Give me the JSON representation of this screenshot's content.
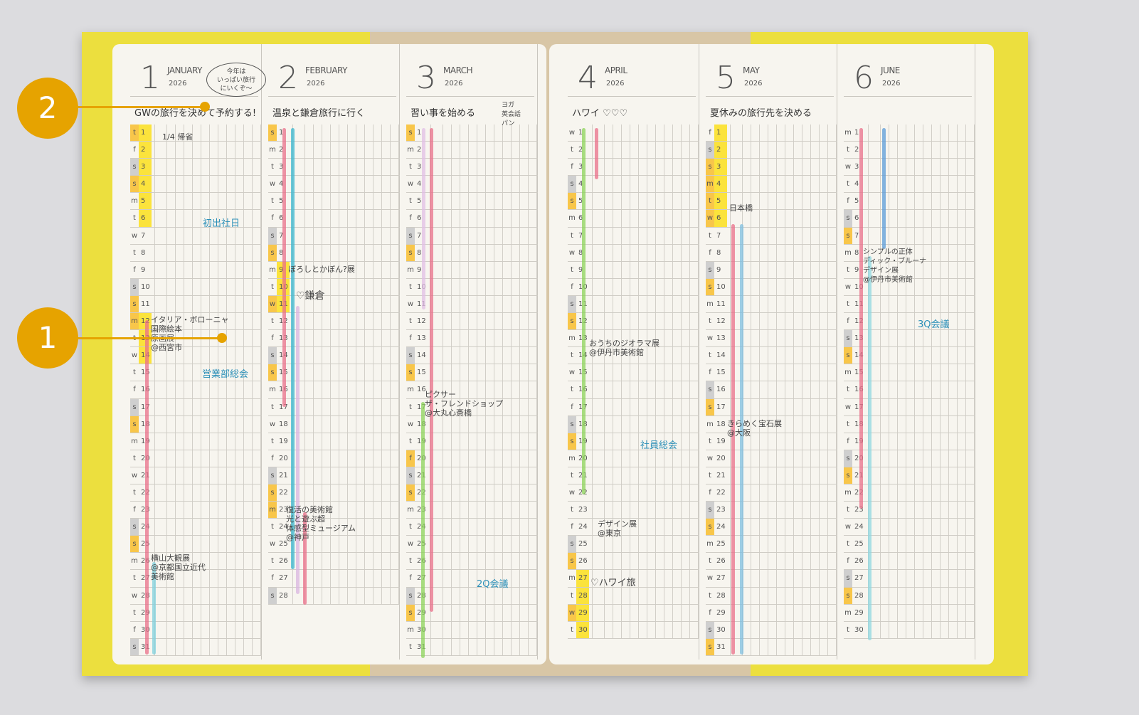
{
  "year": "2026",
  "callouts": [
    "1",
    "2"
  ],
  "months": [
    {
      "num": "1",
      "name": "JANUARY",
      "goal": "GWの旅行を決めて予約する!",
      "weekdays": "tfssmtwtfssmtwtfssmtwtfssmtwtfs",
      "holidays": [
        1,
        4,
        11,
        12,
        18,
        25
      ],
      "marked": [
        1,
        2,
        3,
        4,
        5,
        6,
        12,
        13,
        14
      ]
    },
    {
      "num": "2",
      "name": "FEBRUARY",
      "goal": "温泉と鎌倉旅行に行く",
      "weekdays": "smtwtfssmtwtfssmtwtfssmtwtfs",
      "holidays": [
        1,
        8,
        11,
        15,
        22,
        23
      ],
      "marked": [
        9,
        10,
        11
      ]
    },
    {
      "num": "3",
      "name": "MARCH",
      "goal": "習い事を始める",
      "weekdays": "smtwtfssmtwtfssmtwtfssmtwtfssmt",
      "holidays": [
        1,
        8,
        15,
        20,
        22,
        29
      ],
      "marked": []
    },
    {
      "num": "4",
      "name": "APRIL",
      "goal": "ハワイ ♡♡♡",
      "weekdays": "wtfssmtwtfssmtwtfssmtwtfssmtwt",
      "holidays": [
        5,
        12,
        19,
        26,
        29
      ],
      "marked": [
        27,
        28,
        29,
        30
      ]
    },
    {
      "num": "5",
      "name": "MAY",
      "goal": "夏休みの旅行先を決める",
      "weekdays": "fssmtwtfssmtwtfssmtwtfssmtwtfss",
      "holidays": [
        3,
        4,
        5,
        6,
        10,
        17,
        24,
        31
      ],
      "marked": [
        1,
        2,
        3,
        4,
        5,
        6
      ]
    },
    {
      "num": "6",
      "name": "JUNE",
      "goal": "",
      "weekdays": "mtwtfssmtwtfssmtwtfssmtwtfssmt",
      "holidays": [
        7,
        14,
        21,
        28
      ],
      "marked": []
    }
  ],
  "bubble": "今年は\nいっぱい旅行\nにいくぞ〜",
  "march_options": "ヨガ\n英会話\nパン",
  "notes": {
    "jan_home": "1/4 帰省",
    "jan_work": "初出社日",
    "jan_italy": "イタリア・ボローニャ\n国際絵本\n原画展\n@西宮市",
    "jan_sales": "営業部総会",
    "jan_taikan": "横山大観展\n@京都国立近代\n美術館",
    "feb_exhibit": "ぼろしとかぼん?展",
    "feb_kamakura": "♡鎌倉",
    "feb_museum": "復活の美術館\n光と遊ぶ超\n体感型ミュージアム\n@神戸",
    "mar_pixar": "ピクサー\nザ・フレンドショップ\n@大丸心斎橋",
    "mar_2q": "2Q会議",
    "apr_diorama": "おうちのジオラマ展\n@伊丹市美術館",
    "apr_meeting": "社員総会",
    "apr_design": "デザイン展\n@東京",
    "apr_hawaii": "♡ハワイ旅",
    "may_home": "日本橋",
    "may_gem": "きらめく宝石展\n@大阪",
    "jun_simple": "シンプルの正体\nディック・ブルーナ\nデザイン展\n@伊丹市美術館",
    "jun_3q": "3Q会議"
  }
}
